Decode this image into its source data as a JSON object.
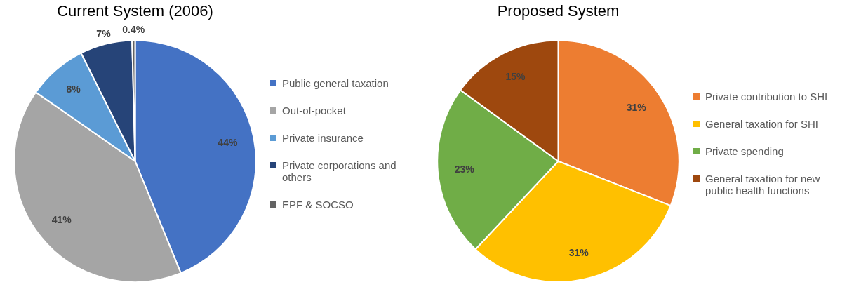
{
  "chart_data": [
    {
      "type": "pie",
      "title": "Current System (2006)",
      "categories": [
        "Public general taxation",
        "Out-of-pocket",
        "Private insurance",
        "Private corporations and others",
        "EPF & SOCSO"
      ],
      "values": [
        44,
        41,
        8,
        7,
        0.4
      ],
      "value_labels": [
        "44%",
        "41%",
        "8%",
        "7%",
        "0.4%"
      ],
      "colors": [
        "#4472c4",
        "#a5a5a5",
        "#5b9bd5",
        "#264478",
        "#636363"
      ],
      "legend": "right"
    },
    {
      "type": "pie",
      "title": "Proposed System",
      "categories": [
        "Private contribution to SHI",
        "General taxation for SHI",
        "Private spending",
        "General taxation for new public health functions"
      ],
      "values": [
        31,
        31,
        23,
        15
      ],
      "value_labels": [
        "31%",
        "31%",
        "23%",
        "15%"
      ],
      "colors": [
        "#ed7d31",
        "#ffc000",
        "#70ad47",
        "#9e480e"
      ],
      "legend": "right"
    }
  ]
}
